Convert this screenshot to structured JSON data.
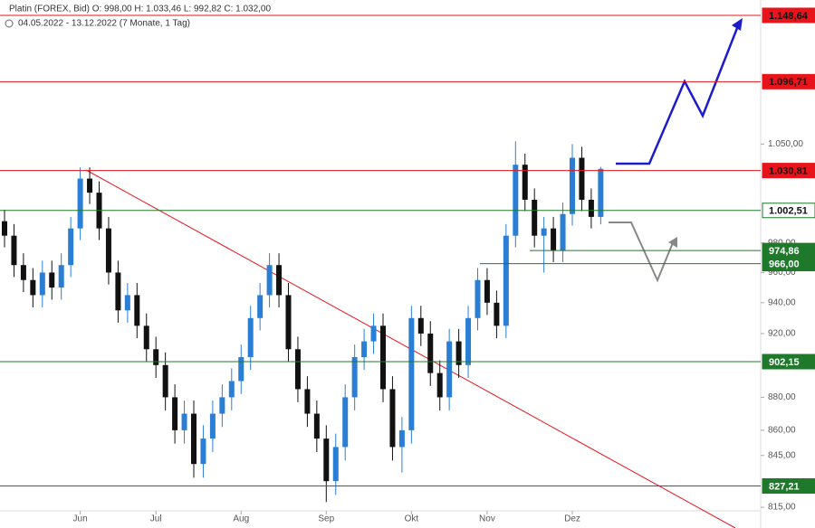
{
  "chart_data": {
    "type": "candlestick",
    "title": "Platin (FOREX, Bid)  O: 998,00  H: 1.033,46  L: 992,82  C: 1.032,00",
    "subtitle": "04.05.2022 - 13.12.2022  (7 Monate, 1 Tag)",
    "log_scale": true,
    "up_color": "#2a7fd4",
    "down_color": "#111111",
    "categories": [
      null,
      null,
      null,
      null,
      null,
      null,
      null,
      null,
      "Jun",
      null,
      null,
      null,
      null,
      null,
      null,
      null,
      "Jul",
      null,
      null,
      null,
      null,
      null,
      null,
      null,
      null,
      "Aug",
      null,
      null,
      null,
      null,
      null,
      null,
      null,
      null,
      "Sep",
      null,
      null,
      null,
      null,
      null,
      null,
      null,
      null,
      "Okt",
      null,
      null,
      null,
      null,
      null,
      null,
      null,
      "Nov",
      null,
      null,
      null,
      null,
      null,
      null,
      null,
      null,
      "Dez",
      null,
      null,
      null
    ],
    "open": [
      995,
      985,
      965,
      955,
      945,
      960,
      950,
      965,
      990,
      1025,
      1015,
      990,
      960,
      935,
      945,
      925,
      910,
      900,
      880,
      860,
      870,
      840,
      855,
      870,
      880,
      890,
      905,
      930,
      945,
      965,
      945,
      910,
      885,
      870,
      855,
      830,
      850,
      880,
      905,
      915,
      925,
      885,
      850,
      860,
      930,
      920,
      895,
      880,
      915,
      900,
      930,
      955,
      940,
      925,
      985,
      1035,
      1010,
      985,
      990,
      975,
      1000,
      1040,
      1010,
      998
    ],
    "high": [
      1003,
      993,
      973,
      963,
      968,
      968,
      973,
      998,
      1033,
      1033,
      1023,
      998,
      968,
      953,
      953,
      933,
      918,
      908,
      888,
      878,
      878,
      863,
      878,
      888,
      898,
      913,
      938,
      953,
      973,
      973,
      953,
      918,
      893,
      878,
      863,
      858,
      888,
      913,
      923,
      933,
      933,
      893,
      868,
      938,
      938,
      928,
      903,
      923,
      923,
      938,
      963,
      963,
      948,
      993,
      1052,
      1043,
      1018,
      998,
      998,
      1008,
      1050,
      1048,
      1018,
      1033.46
    ],
    "low": [
      977,
      957,
      947,
      937,
      937,
      942,
      942,
      957,
      982,
      1007,
      982,
      952,
      927,
      927,
      917,
      902,
      892,
      872,
      852,
      852,
      832,
      832,
      847,
      862,
      872,
      882,
      897,
      922,
      937,
      937,
      902,
      877,
      862,
      847,
      818,
      822,
      842,
      872,
      897,
      907,
      877,
      842,
      835,
      852,
      912,
      887,
      872,
      872,
      892,
      892,
      922,
      932,
      917,
      917,
      977,
      1002,
      977,
      960,
      967,
      967,
      992,
      1002,
      990,
      992.82
    ],
    "close": [
      985,
      965,
      955,
      945,
      960,
      950,
      965,
      990,
      1025,
      1015,
      990,
      960,
      935,
      945,
      925,
      910,
      900,
      880,
      860,
      870,
      840,
      855,
      870,
      880,
      890,
      905,
      930,
      945,
      965,
      945,
      910,
      885,
      870,
      855,
      830,
      850,
      880,
      905,
      915,
      925,
      885,
      850,
      860,
      930,
      920,
      895,
      880,
      915,
      900,
      930,
      955,
      940,
      925,
      985,
      1035,
      1010,
      985,
      990,
      975,
      1000,
      1040,
      1010,
      998,
      1032
    ],
    "ylim": [
      813,
      1161
    ],
    "yticks": [
      {
        "value": 815,
        "label": "815,00"
      },
      {
        "value": 845,
        "label": "845,00"
      },
      {
        "value": 860,
        "label": "860,00"
      },
      {
        "value": 880,
        "label": "880,00"
      },
      {
        "value": 920,
        "label": "920,00"
      },
      {
        "value": 940,
        "label": "940,00"
      },
      {
        "value": 960,
        "label": "960,00"
      },
      {
        "value": 980,
        "label": "980,00"
      },
      {
        "value": 1050,
        "label": "1.050,00"
      }
    ],
    "levels": [
      {
        "value": 1148.64,
        "label": "1.148,64",
        "color": "#e8141c"
      },
      {
        "value": 1096.71,
        "label": "1.096,71",
        "color": "#e8141c"
      },
      {
        "value": 1030.81,
        "label": "1.030,81",
        "color": "#e8141c"
      },
      {
        "value": 1002.51,
        "label": "1.002,51",
        "color": "#1e7a2a"
      },
      {
        "value": 974.86,
        "label": "974,86",
        "color": "#1e7a2a"
      },
      {
        "value": 966,
        "label": "966,00",
        "color": "#1e7a2a"
      },
      {
        "value": 902.15,
        "label": "902,15",
        "color": "#1e7a2a"
      },
      {
        "value": 827.21,
        "label": "827,21",
        "color": "#1e7a2a"
      }
    ]
  }
}
